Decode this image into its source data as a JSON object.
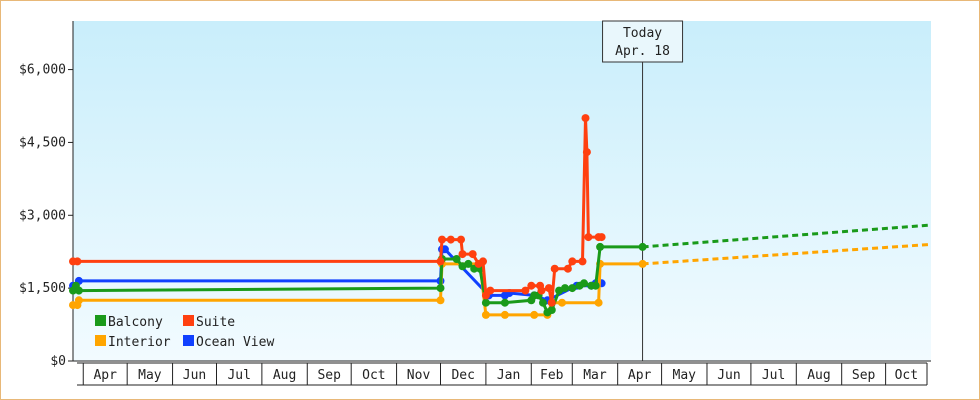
{
  "chart_data": {
    "type": "line",
    "title": "",
    "xlabel": "",
    "ylabel": "",
    "ylim": [
      0,
      7000
    ],
    "y_ticks": [
      {
        "value": 0,
        "label": "$0"
      },
      {
        "value": 1500,
        "label": "$1,500"
      },
      {
        "value": 3000,
        "label": "$3,000"
      },
      {
        "value": 4500,
        "label": "$4,500"
      },
      {
        "value": 6000,
        "label": "$6,000"
      }
    ],
    "x_range": [
      "2024-03-25",
      "2025-11-01"
    ],
    "month_ticks": [
      {
        "label": "Apr",
        "start": "2024-04-01"
      },
      {
        "label": "May",
        "start": "2024-05-01"
      },
      {
        "label": "Jun",
        "start": "2024-06-01"
      },
      {
        "label": "Jul",
        "start": "2024-07-01"
      },
      {
        "label": "Aug",
        "start": "2024-08-01"
      },
      {
        "label": "Sep",
        "start": "2024-09-01"
      },
      {
        "label": "Oct",
        "start": "2024-10-01"
      },
      {
        "label": "Nov",
        "start": "2024-11-01"
      },
      {
        "label": "Dec",
        "start": "2024-12-01"
      },
      {
        "label": "Jan",
        "start": "2025-01-01"
      },
      {
        "label": "Feb",
        "start": "2025-02-01"
      },
      {
        "label": "Mar",
        "start": "2025-03-01"
      },
      {
        "label": "Apr",
        "start": "2025-04-01"
      },
      {
        "label": "May",
        "start": "2025-05-01"
      },
      {
        "label": "Jun",
        "start": "2025-06-01"
      },
      {
        "label": "Jul",
        "start": "2025-07-01"
      },
      {
        "label": "Aug",
        "start": "2025-08-01"
      },
      {
        "label": "Sep",
        "start": "2025-09-01"
      },
      {
        "label": "Oct",
        "start": "2025-10-01"
      }
    ],
    "today": {
      "date": "2025-04-18",
      "label_line1": "Today",
      "label_line2": "Apr. 18"
    },
    "grid": false,
    "legend_position": "bottom-left",
    "series": [
      {
        "name": "Balcony",
        "color": "#1a9a1a",
        "points": [
          [
            "2024-03-25",
            1450
          ],
          [
            "2024-03-27",
            1550
          ],
          [
            "2024-03-29",
            1450
          ],
          [
            "2024-12-01",
            1500
          ],
          [
            "2024-12-02",
            2100
          ],
          [
            "2024-12-12",
            2100
          ],
          [
            "2024-12-16",
            1950
          ],
          [
            "2024-12-20",
            2000
          ],
          [
            "2024-12-24",
            1900
          ],
          [
            "2024-12-28",
            1900
          ],
          [
            "2025-01-01",
            1200
          ],
          [
            "2025-01-14",
            1200
          ],
          [
            "2025-02-01",
            1250
          ],
          [
            "2025-02-03",
            1350
          ],
          [
            "2025-02-06",
            1350
          ],
          [
            "2025-02-09",
            1200
          ],
          [
            "2025-02-12",
            1000
          ],
          [
            "2025-02-15",
            1050
          ],
          [
            "2025-02-20",
            1450
          ],
          [
            "2025-02-24",
            1500
          ],
          [
            "2025-03-01",
            1500
          ],
          [
            "2025-03-06",
            1550
          ],
          [
            "2025-03-09",
            1600
          ],
          [
            "2025-03-14",
            1550
          ],
          [
            "2025-03-17",
            1550
          ],
          [
            "2025-03-20",
            2350
          ],
          [
            "2025-04-18",
            2350
          ]
        ],
        "forecast": [
          [
            "2025-04-18",
            2350
          ],
          [
            "2025-11-01",
            2800
          ]
        ]
      },
      {
        "name": "Suite",
        "color": "#ff4010",
        "points": [
          [
            "2024-03-25",
            2050
          ],
          [
            "2024-03-28",
            2050
          ],
          [
            "2024-12-01",
            2050
          ],
          [
            "2024-12-02",
            2500
          ],
          [
            "2024-12-08",
            2500
          ],
          [
            "2024-12-15",
            2500
          ],
          [
            "2024-12-16",
            2200
          ],
          [
            "2024-12-23",
            2200
          ],
          [
            "2024-12-27",
            2000
          ],
          [
            "2024-12-30",
            2050
          ],
          [
            "2025-01-01",
            1350
          ],
          [
            "2025-01-04",
            1450
          ],
          [
            "2025-01-28",
            1450
          ],
          [
            "2025-02-01",
            1550
          ],
          [
            "2025-02-07",
            1550
          ],
          [
            "2025-02-08",
            1450
          ],
          [
            "2025-02-13",
            1500
          ],
          [
            "2025-02-15",
            1200
          ],
          [
            "2025-02-17",
            1900
          ],
          [
            "2025-02-26",
            1900
          ],
          [
            "2025-03-01",
            2050
          ],
          [
            "2025-03-08",
            2050
          ],
          [
            "2025-03-10",
            5000
          ],
          [
            "2025-03-11",
            4300
          ],
          [
            "2025-03-12",
            2550
          ],
          [
            "2025-03-19",
            2550
          ],
          [
            "2025-03-21",
            2550
          ]
        ]
      },
      {
        "name": "Interior",
        "color": "#ffa500",
        "points": [
          [
            "2024-03-25",
            1150
          ],
          [
            "2024-03-28",
            1150
          ],
          [
            "2024-03-29",
            1250
          ],
          [
            "2024-12-01",
            1250
          ],
          [
            "2024-12-02",
            2000
          ],
          [
            "2024-12-28",
            2000
          ],
          [
            "2025-01-01",
            950
          ],
          [
            "2025-01-14",
            950
          ],
          [
            "2025-02-03",
            950
          ],
          [
            "2025-02-12",
            950
          ],
          [
            "2025-02-15",
            1200
          ],
          [
            "2025-02-22",
            1200
          ],
          [
            "2025-03-19",
            1200
          ],
          [
            "2025-03-20",
            2000
          ],
          [
            "2025-04-18",
            2000
          ]
        ],
        "forecast": [
          [
            "2025-04-18",
            2000
          ],
          [
            "2025-11-01",
            2400
          ]
        ]
      },
      {
        "name": "Ocean View",
        "color": "#1040ff",
        "points": [
          [
            "2024-03-25",
            1550
          ],
          [
            "2024-03-29",
            1650
          ],
          [
            "2024-12-01",
            1650
          ],
          [
            "2024-12-02",
            2300
          ],
          [
            "2024-12-04",
            2300
          ],
          [
            "2025-01-03",
            1350
          ],
          [
            "2025-01-14",
            1350
          ],
          [
            "2025-01-17",
            1400
          ],
          [
            "2025-02-03",
            1350
          ],
          [
            "2025-02-12",
            1250
          ],
          [
            "2025-03-04",
            1550
          ],
          [
            "2025-03-14",
            1550
          ],
          [
            "2025-03-17",
            1600
          ],
          [
            "2025-03-21",
            1600
          ]
        ]
      }
    ]
  }
}
